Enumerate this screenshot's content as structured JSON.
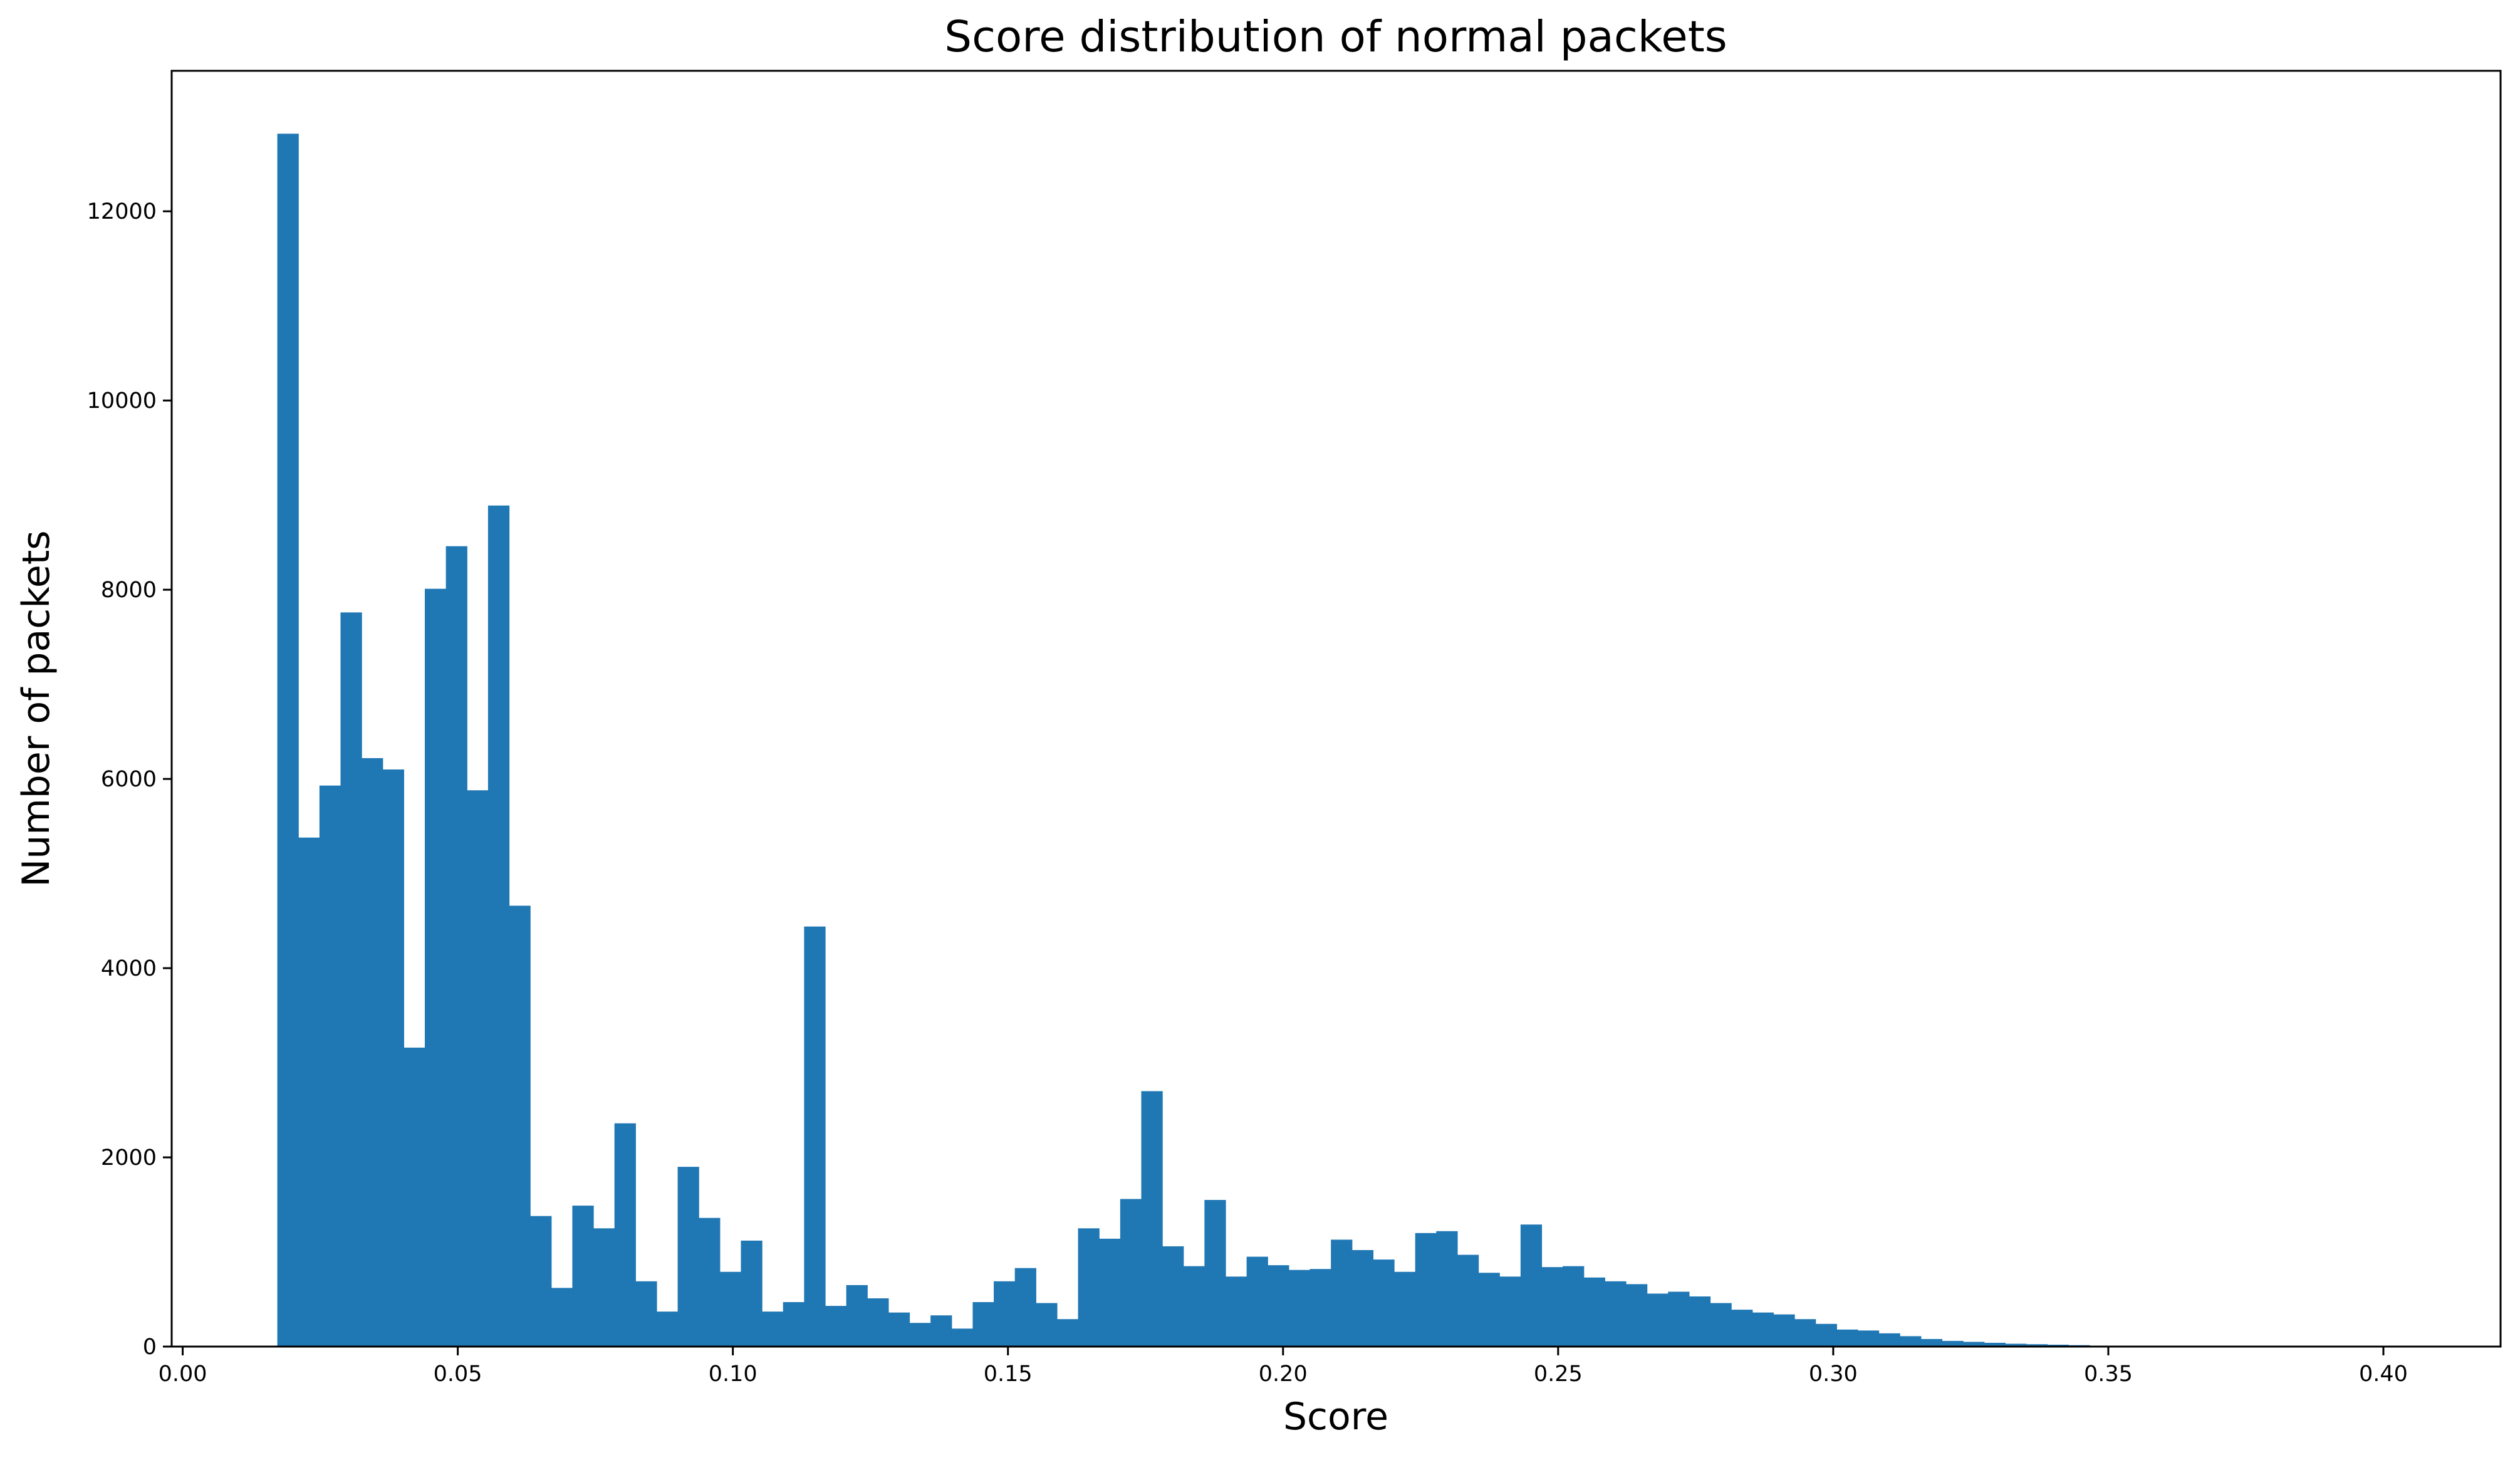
{
  "chart_data": {
    "type": "bar",
    "title": "Score distribution of normal packets",
    "xlabel": "Score",
    "ylabel": "Number of packets",
    "xlim": [
      -0.002,
      0.4213
    ],
    "ylim": [
      0,
      13485
    ],
    "grid": false,
    "legend": "none",
    "bar_color": "#1f77b4",
    "x_ticks": [
      0.0,
      0.05,
      0.1,
      0.15,
      0.2,
      0.25,
      0.3,
      0.35,
      0.4
    ],
    "x_tick_labels": [
      "0.00",
      "0.05",
      "0.10",
      "0.15",
      "0.20",
      "0.25",
      "0.30",
      "0.35",
      "0.40"
    ],
    "y_ticks": [
      0,
      2000,
      4000,
      6000,
      8000,
      10000,
      12000
    ],
    "y_tick_labels": [
      "0",
      "2000",
      "4000",
      "6000",
      "8000",
      "10000",
      "12000"
    ],
    "bin_start": 0.0172,
    "bin_width": 0.00383,
    "values": [
      12820,
      5380,
      5930,
      7760,
      6220,
      6100,
      3160,
      8010,
      8460,
      5880,
      8890,
      4660,
      1380,
      620,
      1490,
      1250,
      2360,
      690,
      370,
      1900,
      1360,
      790,
      1120,
      370,
      470,
      4440,
      430,
      650,
      510,
      360,
      250,
      330,
      190,
      470,
      690,
      830,
      460,
      290,
      1250,
      1140,
      1560,
      2700,
      1060,
      850,
      1550,
      740,
      950,
      860,
      810,
      820,
      1130,
      1020,
      920,
      790,
      1200,
      1220,
      970,
      780,
      740,
      1290,
      840,
      850,
      730,
      690,
      660,
      560,
      580,
      530,
      460,
      390,
      360,
      340,
      290,
      240,
      180,
      170,
      140,
      110,
      80,
      60,
      50,
      40,
      30,
      25,
      20,
      15,
      10,
      8,
      6,
      5,
      4,
      3,
      2,
      2,
      1,
      1,
      1,
      1,
      1,
      0
    ]
  }
}
